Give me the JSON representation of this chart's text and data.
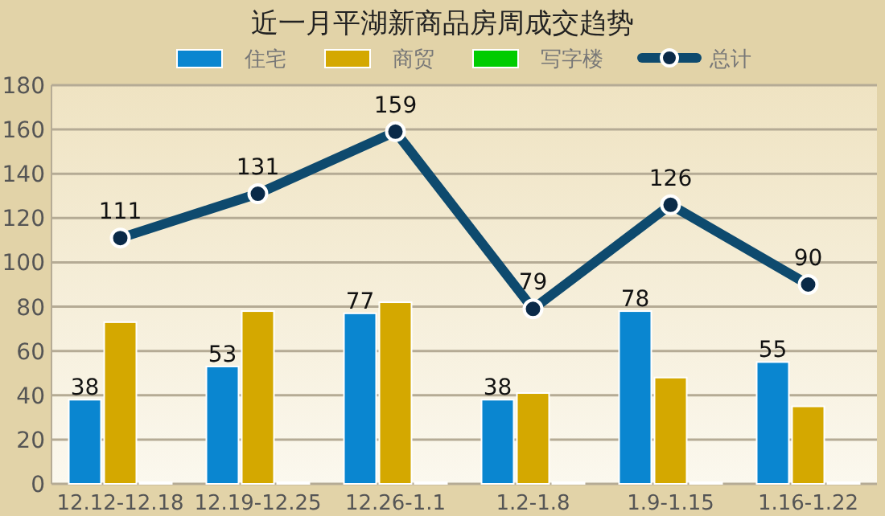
{
  "chart_data": {
    "type": "bar",
    "title": "近一月平湖新商品房周成交趋势",
    "categories": [
      "12.12-12.18",
      "12.19-12.25",
      "12.26-1.1",
      "1.2-1.8",
      "1.9-1.15",
      "1.16-1.22"
    ],
    "series": [
      {
        "name": "住宅",
        "color": "#0a86d0",
        "values": [
          38,
          53,
          77,
          38,
          78,
          55
        ],
        "value_labels": [
          "38",
          "53",
          "77",
          "38",
          "78",
          "55"
        ]
      },
      {
        "name": "商贸",
        "color": "#d4a800",
        "values": [
          73,
          78,
          82,
          41,
          48,
          35
        ]
      },
      {
        "name": "写字楼",
        "color": "#00cc00",
        "values": [
          0,
          0,
          0,
          0,
          0,
          0
        ]
      },
      {
        "name": "总计",
        "type": "line",
        "color": "#0e4a6e",
        "marker": "circle",
        "values": [
          111,
          131,
          159,
          79,
          126,
          90
        ],
        "value_labels": [
          "111",
          "131",
          "159",
          "79",
          "126",
          "90"
        ]
      }
    ],
    "ylim": [
      0,
      180
    ],
    "yticks": [
      0,
      20,
      40,
      60,
      80,
      100,
      120,
      140,
      160,
      180
    ],
    "grid": "y",
    "legend": "top"
  }
}
